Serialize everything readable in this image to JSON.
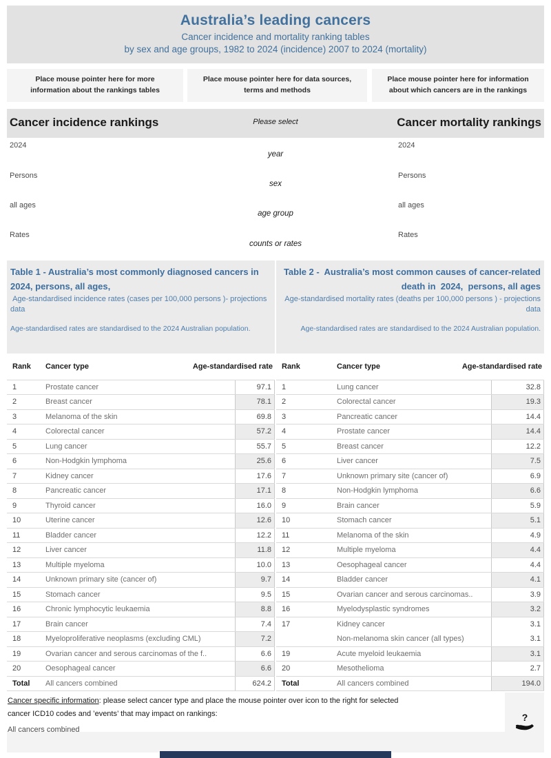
{
  "header": {
    "title": "Australia’s leading cancers",
    "subtitle1": "Cancer incidence and mortality ranking tables",
    "subtitle2": "by sex and age groups, 1982 to 2024 (incidence) 2007 to 2024 (mortality)"
  },
  "info_boxes": [
    "Place mouse pointer here for more information about the rankings tables",
    "Place mouse pointer here for data sources, terms and methods",
    "Place mouse pointer here for information about which cancers are in the rankings"
  ],
  "selector_section": {
    "left_title": "Cancer incidence rankings",
    "center_label": "Please select",
    "right_title": "Cancer mortality rankings",
    "param_labels": [
      "year",
      "sex",
      "age group",
      "counts or rates"
    ],
    "incidence_params": {
      "year": "2024",
      "sex": "Persons",
      "age_group": "all ages",
      "measure": "Rates"
    },
    "mortality_params": {
      "year": "2024",
      "sex": "Persons",
      "age_group": "all ages",
      "measure": "Rates"
    }
  },
  "tables": {
    "incidence": {
      "title": "Table 1 - Australia’s most commonly diagnosed cancers in 2024, persons, all ages,",
      "subtitle": " Age-standardised incidence rates (cases per 100,000 persons )- projections data",
      "note": "Age-standardised rates are standardised to the 2024 Australian population.",
      "columns": {
        "rank": "Rank",
        "type": "Cancer type",
        "rate": "Age-standardised rate"
      },
      "rows": [
        {
          "rank": "1",
          "type": "Prostate cancer",
          "rate": "97.1",
          "shaded": false
        },
        {
          "rank": "2",
          "type": "Breast cancer",
          "rate": "78.1",
          "shaded": true
        },
        {
          "rank": "3",
          "type": "Melanoma of the skin",
          "rate": "69.8",
          "shaded": false
        },
        {
          "rank": "4",
          "type": "Colorectal cancer",
          "rate": "57.2",
          "shaded": true
        },
        {
          "rank": "5",
          "type": "Lung cancer",
          "rate": "55.7",
          "shaded": false
        },
        {
          "rank": "6",
          "type": "Non-Hodgkin lymphoma",
          "rate": "25.6",
          "shaded": true
        },
        {
          "rank": "7",
          "type": "Kidney cancer",
          "rate": "17.6",
          "shaded": false
        },
        {
          "rank": "8",
          "type": "Pancreatic cancer",
          "rate": "17.1",
          "shaded": true
        },
        {
          "rank": "9",
          "type": "Thyroid cancer",
          "rate": "16.0",
          "shaded": false
        },
        {
          "rank": "10",
          "type": "Uterine cancer",
          "rate": "12.6",
          "shaded": true
        },
        {
          "rank": "11",
          "type": "Bladder cancer",
          "rate": "12.2",
          "shaded": false
        },
        {
          "rank": "12",
          "type": "Liver cancer",
          "rate": "11.8",
          "shaded": true
        },
        {
          "rank": "13",
          "type": "Multiple myeloma",
          "rate": "10.0",
          "shaded": false
        },
        {
          "rank": "14",
          "type": "Unknown primary site (cancer of)",
          "rate": "9.7",
          "shaded": true
        },
        {
          "rank": "15",
          "type": "Stomach cancer",
          "rate": "9.5",
          "shaded": false
        },
        {
          "rank": "16",
          "type": "Chronic lymphocytic leukaemia",
          "rate": "8.8",
          "shaded": true
        },
        {
          "rank": "17",
          "type": "Brain cancer",
          "rate": "7.4",
          "shaded": false
        },
        {
          "rank": "18",
          "type": "Myeloproliferative neoplasms (excluding CML)",
          "rate": "7.2",
          "shaded": true
        },
        {
          "rank": "19",
          "type": "Ovarian cancer and serous carcinomas of the f..",
          "rate": "6.6",
          "shaded": false
        },
        {
          "rank": "20",
          "type": "Oesophageal cancer",
          "rate": "6.6",
          "shaded": true
        }
      ],
      "total": {
        "rank": "Total",
        "type": "All cancers combined",
        "rate": "624.2",
        "shaded": false
      }
    },
    "mortality": {
      "title": "Table 2 -  Australia’s most common causes of cancer-related death in  2024,  persons, all ages",
      "subtitle": "Age-standardised mortality rates (deaths per 100,000 persons ) - projections data",
      "note": "Age-standardised rates are standardised to the 2024 Australian population.",
      "columns": {
        "rank": "Rank",
        "type": "Cancer type",
        "rate": "Age-standardised rate"
      },
      "rows": [
        {
          "rank": "1",
          "type": "Lung cancer",
          "rate": "32.8",
          "shaded": false
        },
        {
          "rank": "2",
          "type": "Colorectal cancer",
          "rate": "19.3",
          "shaded": true
        },
        {
          "rank": "3",
          "type": "Pancreatic cancer",
          "rate": "14.4",
          "shaded": false
        },
        {
          "rank": "4",
          "type": "Prostate cancer",
          "rate": "14.4",
          "shaded": true
        },
        {
          "rank": "5",
          "type": "Breast cancer",
          "rate": "12.2",
          "shaded": false
        },
        {
          "rank": "6",
          "type": "Liver cancer",
          "rate": "7.5",
          "shaded": true
        },
        {
          "rank": "7",
          "type": "Unknown primary site (cancer of)",
          "rate": "6.9",
          "shaded": false
        },
        {
          "rank": "8",
          "type": "Non-Hodgkin lymphoma",
          "rate": "6.6",
          "shaded": true
        },
        {
          "rank": "9",
          "type": "Brain cancer",
          "rate": "5.9",
          "shaded": false
        },
        {
          "rank": "10",
          "type": "Stomach cancer",
          "rate": "5.1",
          "shaded": true
        },
        {
          "rank": "11",
          "type": "Melanoma of the skin",
          "rate": "4.9",
          "shaded": false
        },
        {
          "rank": "12",
          "type": "Multiple myeloma",
          "rate": "4.4",
          "shaded": true
        },
        {
          "rank": "13",
          "type": "Oesophageal cancer",
          "rate": "4.4",
          "shaded": false
        },
        {
          "rank": "14",
          "type": "Bladder cancer",
          "rate": "4.1",
          "shaded": true
        },
        {
          "rank": "15",
          "type": "Ovarian cancer and serous carcinomas..",
          "rate": "3.9",
          "shaded": false
        },
        {
          "rank": "16",
          "type": "Myelodysplastic syndromes",
          "rate": "3.2",
          "shaded": true
        },
        {
          "rank": "17",
          "type": "Kidney cancer",
          "rate": "3.1",
          "shaded": false,
          "noBottomBorder": true
        },
        {
          "rank": "",
          "type": "Non-melanoma skin cancer (all types)",
          "rate": "3.1",
          "shaded": false
        },
        {
          "rank": "19",
          "type": "Acute myeloid leukaemia",
          "rate": "3.1",
          "shaded": true
        },
        {
          "rank": "20",
          "type": "Mesothelioma",
          "rate": "2.7",
          "shaded": false
        }
      ],
      "total": {
        "rank": "Total",
        "type": "All cancers combined",
        "rate": "194.0",
        "shaded": true
      }
    }
  },
  "footer": {
    "line1_underlined": "Cancer specific information",
    "line1_rest": ": please select cancer type and place the mouse pointer over icon to the right for selected",
    "line2": "cancer ICD10 codes and ’events’  that may impact on rankings:",
    "selector_value": "All cancers combined",
    "icon": "hand-question-icon"
  },
  "colors": {
    "title_blue": "#41719c",
    "table_title_blue": "#3d6e9e",
    "band_gray": "#e2e2e2",
    "panel_gray": "#ebebeb",
    "shaded_cell": "#ececec",
    "scrollbar_navy": "#24395b"
  }
}
